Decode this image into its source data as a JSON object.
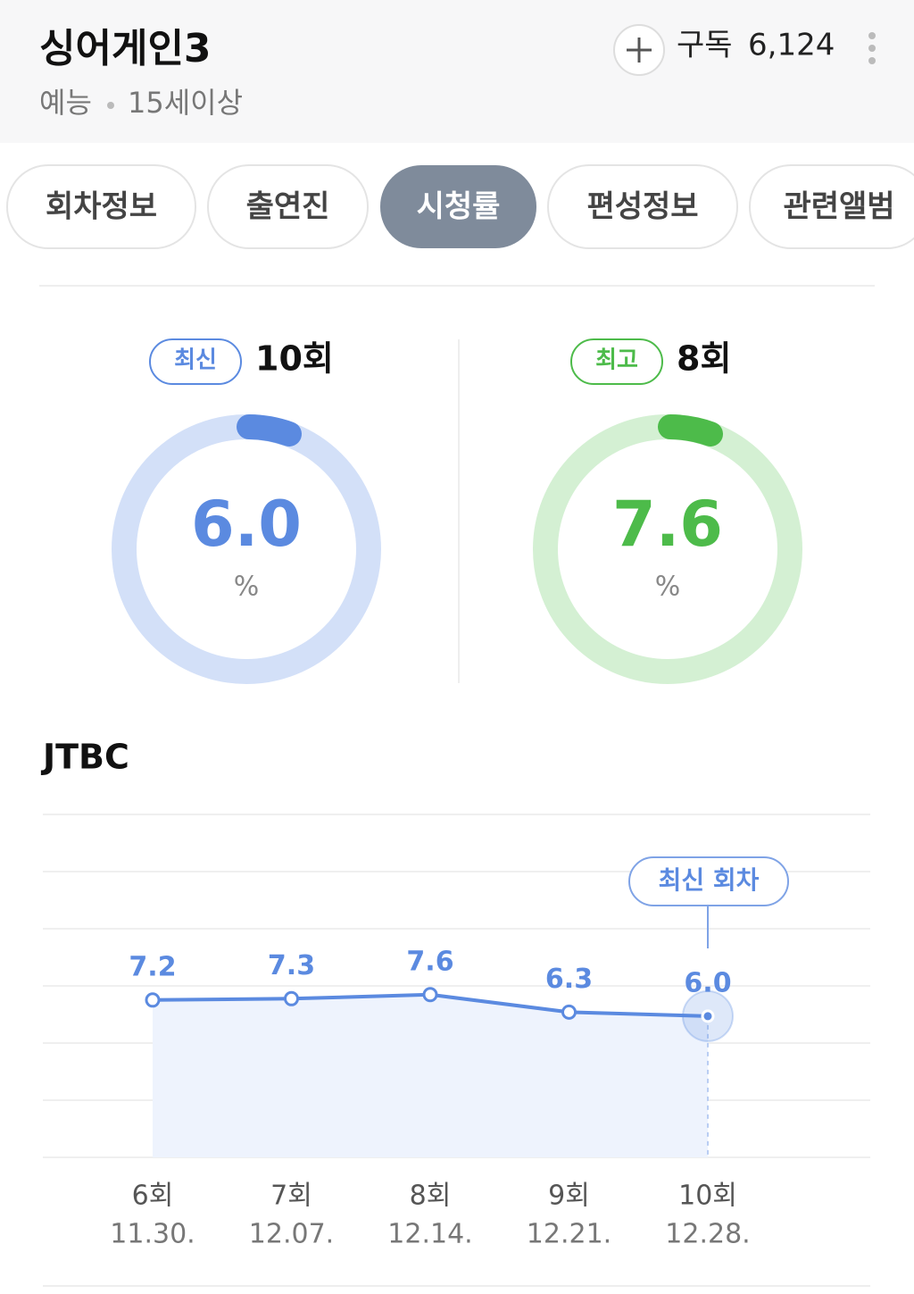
{
  "header": {
    "title": "싱어게인3",
    "genre": "예능",
    "age_rating": "15세이상",
    "subscribe_label": "구독",
    "subscribe_count": "6,124"
  },
  "tabs": {
    "items": [
      "회차정보",
      "출연진",
      "시청률",
      "편성정보",
      "관련앨범"
    ],
    "active": 2
  },
  "gauges": [
    {
      "badge": "최신",
      "episode": "10회",
      "value": "6.0",
      "unit": "%",
      "color": "#5b8ae0",
      "track": "#d3e0f8"
    },
    {
      "badge": "최고",
      "episode": "8회",
      "value": "7.6",
      "unit": "%",
      "color": "#4dbb4a",
      "track": "#d4f0d3"
    }
  ],
  "chart_data": {
    "type": "line",
    "title": "JTBC",
    "categories": [
      "6회",
      "7회",
      "8회",
      "9회",
      "10회"
    ],
    "dates": [
      "11.30.",
      "12.07.",
      "12.14.",
      "12.21.",
      "12.28."
    ],
    "series": [
      {
        "color": "#5b8ae0",
        "values": [
          7.2,
          7.3,
          7.6,
          6.3,
          6.0
        ],
        "value_labels": [
          "7.2",
          "7.3",
          "7.6",
          "6.3",
          "6.0"
        ]
      }
    ],
    "ylim": [
      -4.5,
      21
    ],
    "annotation": "최신 회차"
  }
}
